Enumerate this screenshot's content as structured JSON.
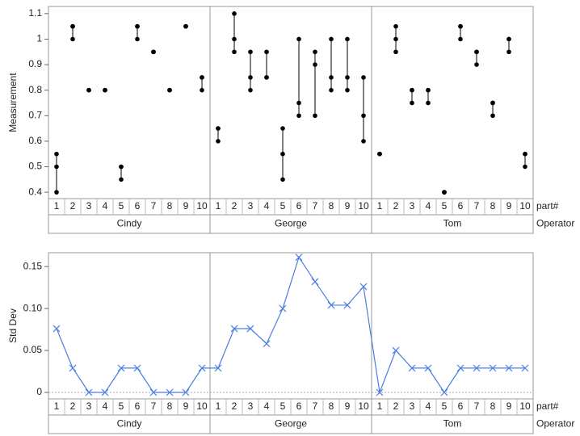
{
  "chart_data": [
    {
      "type": "variability",
      "ylabel": "Measurement",
      "x_label": "part#",
      "group_label": "Operator",
      "parts": [
        "1",
        "2",
        "3",
        "4",
        "5",
        "6",
        "7",
        "8",
        "9",
        "10"
      ],
      "ylim": [
        0.375,
        1.128
      ],
      "yticks": [
        0.4,
        0.5,
        0.6,
        0.7,
        0.8,
        0.9,
        1,
        1.1
      ],
      "color": "#000000",
      "series": [
        {
          "name": "Cindy",
          "values": [
            [
              0.4,
              0.5,
              0.55
            ],
            [
              1.0,
              1.05,
              1.05
            ],
            [
              0.8,
              0.8,
              0.8
            ],
            [
              0.8,
              0.8,
              0.8
            ],
            [
              0.45,
              0.5,
              0.5
            ],
            [
              1.0,
              1.05,
              1.05
            ],
            [
              0.95,
              0.95,
              0.95
            ],
            [
              0.8,
              0.8,
              0.8
            ],
            [
              1.05,
              1.05,
              1.05
            ],
            [
              0.8,
              0.85,
              0.85
            ]
          ]
        },
        {
          "name": "George",
          "values": [
            [
              0.6,
              0.65,
              0.65
            ],
            [
              0.95,
              1.0,
              1.1
            ],
            [
              0.8,
              0.85,
              0.95
            ],
            [
              0.85,
              0.85,
              0.95
            ],
            [
              0.45,
              0.55,
              0.65
            ],
            [
              0.7,
              0.75,
              1.0
            ],
            [
              0.7,
              0.9,
              0.95
            ],
            [
              0.8,
              0.85,
              1.0
            ],
            [
              0.8,
              0.85,
              1.0
            ],
            [
              0.6,
              0.7,
              0.85
            ]
          ]
        },
        {
          "name": "Tom",
          "values": [
            [
              0.55,
              0.55,
              0.55
            ],
            [
              0.95,
              1.0,
              1.05
            ],
            [
              0.75,
              0.8,
              0.8
            ],
            [
              0.75,
              0.8,
              0.8
            ],
            [
              0.4,
              0.4,
              0.4
            ],
            [
              1.0,
              1.05,
              1.05
            ],
            [
              0.9,
              0.95,
              0.95
            ],
            [
              0.7,
              0.75,
              0.75
            ],
            [
              0.95,
              1.0,
              1.0
            ],
            [
              0.5,
              0.55,
              0.55
            ]
          ]
        }
      ]
    },
    {
      "type": "line",
      "ylabel": "Std Dev",
      "x_label": "part#",
      "group_label": "Operator",
      "parts": [
        "1",
        "2",
        "3",
        "4",
        "5",
        "6",
        "7",
        "8",
        "9",
        "10"
      ],
      "ylim": [
        -0.0077,
        0.1665
      ],
      "yticks": [
        0,
        0.05,
        {
          "value": 0.1,
          "label": "0.10"
        },
        0.15
      ],
      "color": "#4a7fe0",
      "series": [
        {
          "name": "Cindy",
          "values": [
            0.076,
            0.029,
            0,
            0,
            0.029,
            0.029,
            0,
            0,
            0,
            0.029
          ]
        },
        {
          "name": "George",
          "values": [
            0.029,
            0.076,
            0.076,
            0.058,
            0.1,
            0.161,
            0.132,
            0.104,
            0.104,
            0.126
          ]
        },
        {
          "name": "Tom",
          "values": [
            0,
            0.05,
            0.029,
            0.029,
            0,
            0.029,
            0.029,
            0.029,
            0.029,
            0.029
          ]
        }
      ]
    }
  ]
}
